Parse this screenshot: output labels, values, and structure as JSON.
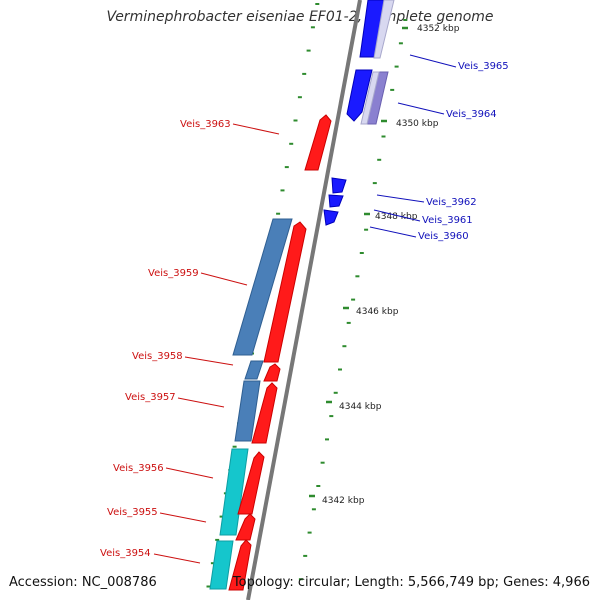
{
  "title": "Verminephrobacter eiseniae EF01-2, complete genome",
  "accession": "Accession: NC_008786",
  "topology": "Topology: circular; Length: 5,566,749 bp; Genes: 4,966",
  "colors": {
    "backbone": "#777777",
    "tick_green": "#2e8b2e",
    "forward_red": "#ff1a1a",
    "reverse_blue": "#1a1aff",
    "steelblue": "#4a7fb8",
    "cyan": "#15c6cc",
    "lavender": "#8a80d0",
    "label_red": "#cc1111",
    "label_blue": "#1111bb"
  },
  "position_labels": [
    "4352 kbp",
    "4350 kbp",
    "4348 kbp",
    "4346 kbp",
    "4344 kbp",
    "4342 kbp"
  ],
  "gene_labels": {
    "forward": [
      "Veis_3963",
      "Veis_3959",
      "Veis_3958",
      "Veis_3957",
      "Veis_3956",
      "Veis_3955",
      "Veis_3954"
    ],
    "reverse": [
      "Veis_3965",
      "Veis_3964",
      "Veis_3962",
      "Veis_3961",
      "Veis_3960"
    ]
  }
}
